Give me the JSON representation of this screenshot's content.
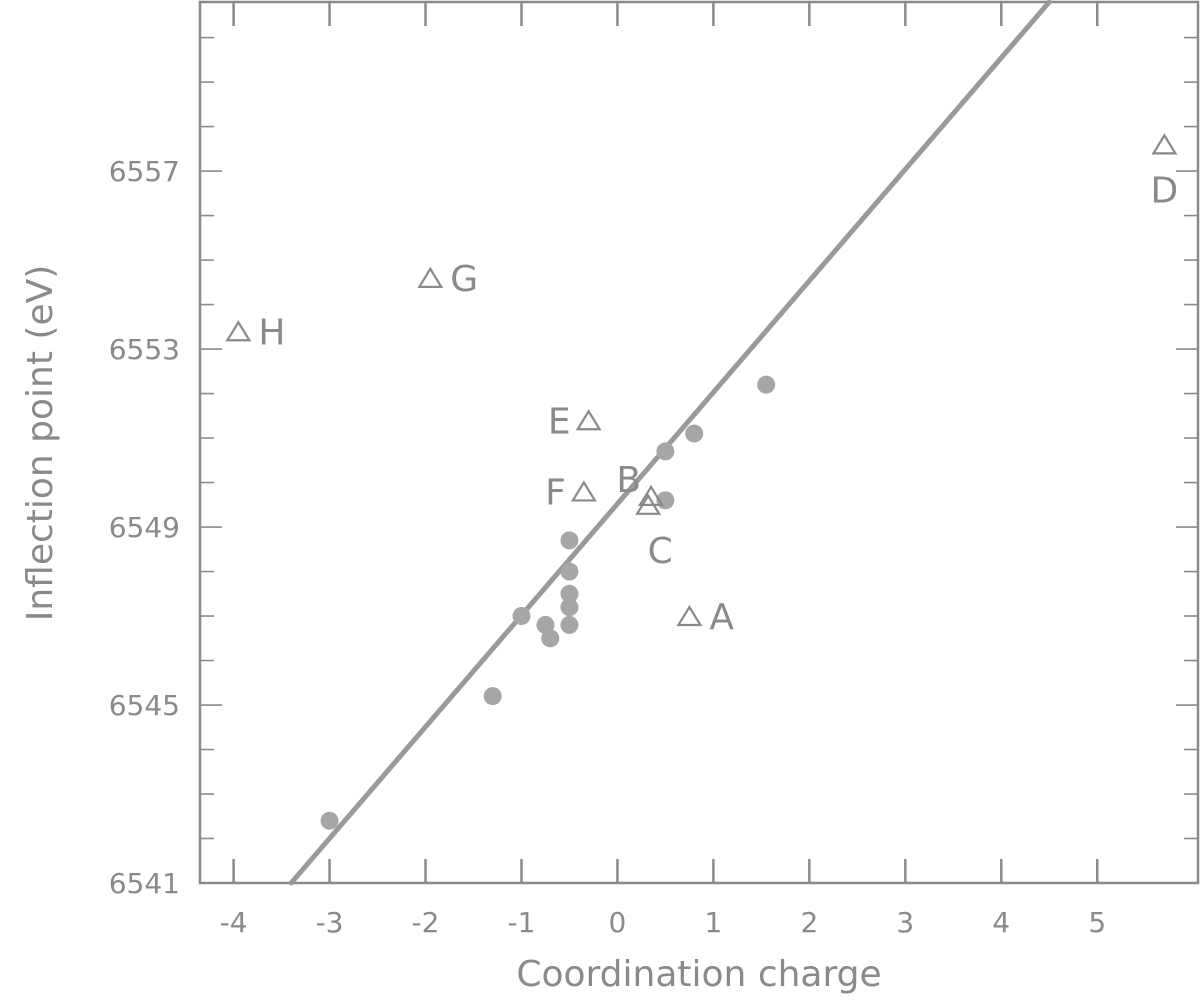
{
  "chart_data": {
    "type": "scatter",
    "title": "",
    "xlabel": "Coordination charge",
    "ylabel": "Inflection point (eV)",
    "xlim": [
      -4.35,
      6.05
    ],
    "ylim": [
      6541,
      6560.8
    ],
    "x_ticks": [
      {
        "value": -4,
        "label": "-4"
      },
      {
        "value": -3,
        "label": "-3"
      },
      {
        "value": -2,
        "label": "-2"
      },
      {
        "value": -1,
        "label": "-1"
      },
      {
        "value": 0,
        "label": "0"
      },
      {
        "value": 1,
        "label": "1"
      },
      {
        "value": 2,
        "label": "2"
      },
      {
        "value": 3,
        "label": "3"
      },
      {
        "value": 4,
        "label": "4"
      },
      {
        "value": 5,
        "label": "5"
      }
    ],
    "y_ticks": [
      {
        "value": 6541,
        "label": "6541"
      },
      {
        "value": 6545,
        "label": "6545"
      },
      {
        "value": 6549,
        "label": "6549"
      },
      {
        "value": 6553,
        "label": "6553"
      },
      {
        "value": 6557,
        "label": "6557"
      }
    ],
    "grid": false,
    "colors": {
      "ink": "#8a8a8a",
      "dot": "#a6a6a6",
      "line": "#9a9a9a"
    },
    "series": [
      {
        "marker": "circle",
        "points": [
          {
            "x": -3.0,
            "y": 6542.4
          },
          {
            "x": -1.3,
            "y": 6545.2
          },
          {
            "x": -1.0,
            "y": 6547.0
          },
          {
            "x": -0.75,
            "y": 6546.8
          },
          {
            "x": -0.7,
            "y": 6546.5
          },
          {
            "x": -0.5,
            "y": 6546.8
          },
          {
            "x": -0.5,
            "y": 6547.2
          },
          {
            "x": -0.5,
            "y": 6547.5
          },
          {
            "x": -0.5,
            "y": 6548.0
          },
          {
            "x": -0.5,
            "y": 6548.7
          },
          {
            "x": 0.5,
            "y": 6549.6
          },
          {
            "x": 0.5,
            "y": 6550.7
          },
          {
            "x": 0.8,
            "y": 6551.1
          },
          {
            "x": 1.55,
            "y": 6552.2
          }
        ]
      },
      {
        "marker": "triangle",
        "points": [
          {
            "x": 0.75,
            "y": 6547.0,
            "label": "A",
            "label_pos": "right"
          },
          {
            "x": 0.35,
            "y": 6549.7,
            "label": "B",
            "label_pos": "left-above"
          },
          {
            "x": 0.32,
            "y": 6549.5,
            "label": "C",
            "label_pos": "below-right"
          },
          {
            "x": 5.7,
            "y": 6557.6,
            "label": "D",
            "label_pos": "below"
          },
          {
            "x": -0.3,
            "y": 6551.4,
            "label": "E",
            "label_pos": "left"
          },
          {
            "x": -0.35,
            "y": 6549.8,
            "label": "F",
            "label_pos": "left"
          },
          {
            "x": -1.95,
            "y": 6554.6,
            "label": "G",
            "label_pos": "right"
          },
          {
            "x": -3.95,
            "y": 6553.4,
            "label": "H",
            "label_pos": "right"
          }
        ]
      }
    ],
    "fit_line": {
      "x1": -3.4,
      "y1": 6541.0,
      "x2": 4.5,
      "y2": 6560.8
    }
  }
}
